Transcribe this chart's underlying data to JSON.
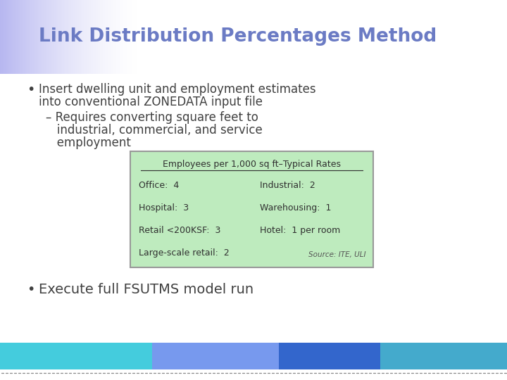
{
  "title": "Link Distribution Percentages Method",
  "title_color": "#6B7BC4",
  "bg_color": "#FFFFFF",
  "bullet1_line1": "Insert dwelling unit and employment estimates",
  "bullet1_line2": "into conventional ZONEDATA input file",
  "sub_bullet_line1": "– Requires converting square feet to",
  "sub_bullet_line2": "   industrial, commercial, and service",
  "sub_bullet_line3": "   employment",
  "bullet2": "Execute full FSUTMS model run",
  "table_title": "Employees per 1,000 sq ft–Typical Rates",
  "table_bg": "#BEEBBE",
  "table_border": "#999999",
  "table_rows_left": [
    "Office:  4",
    "Hospital:  3",
    "Retail <200KSF:  3",
    "Large-scale retail:  2"
  ],
  "table_rows_right": [
    "Industrial:  2",
    "Warehousing:  1",
    "Hotel:  1 per room",
    "Source: ITE, ULI"
  ],
  "text_color": "#404040",
  "table_text_color": "#303030",
  "source_text_color": "#555555",
  "grad_color": "#AAAAEE",
  "bar_color_left": "#44CCDD",
  "bar_color_mid": "#6688EE",
  "bar_color_right": "#4466CC"
}
